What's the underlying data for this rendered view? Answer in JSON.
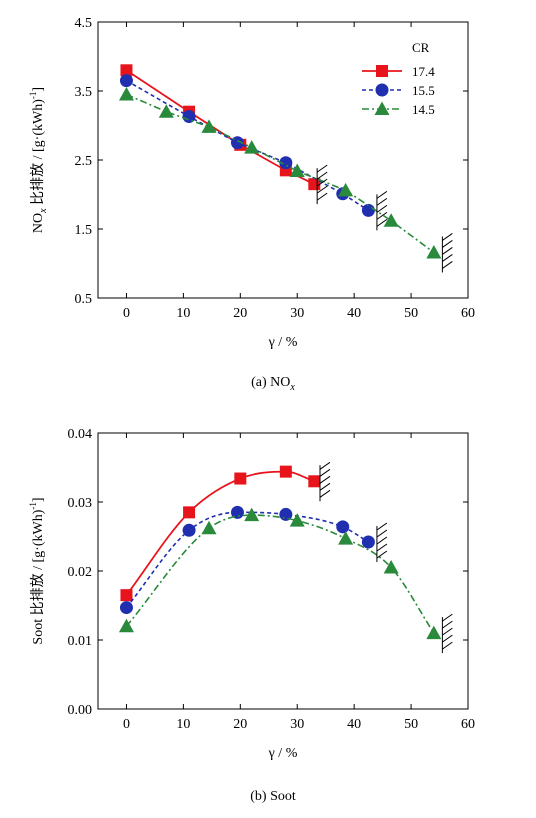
{
  "chart_data": [
    {
      "type": "line",
      "caption_prefix": "(a)",
      "caption_main": "NO",
      "caption_sub": "x",
      "xlabel": "γ / %",
      "ylabel_main": "NO",
      "ylabel_sub": "x",
      "ylabel_rest": " 比排放 / [g·(kWh)",
      "ylabel_sup": "-1",
      "ylabel_end": "]",
      "xlim": [
        -5,
        60
      ],
      "ylim": [
        0.5,
        4.5
      ],
      "xticks": [
        0,
        10,
        20,
        30,
        40,
        50,
        60
      ],
      "yticks": [
        0.5,
        1.5,
        2.5,
        3.5,
        4.5
      ],
      "ytick_labels": [
        "0.5",
        "1.5",
        "2.5",
        "3.5",
        "4.5"
      ],
      "grid": false,
      "legend": {
        "title": "CR",
        "position": "top-right"
      },
      "series": [
        {
          "name": "17.4",
          "color": "#e8141c",
          "marker": "square",
          "line": "solid",
          "x": [
            0,
            11,
            20,
            28,
            33
          ],
          "y": [
            3.8,
            3.2,
            2.72,
            2.35,
            2.15
          ]
        },
        {
          "name": "15.5",
          "color": "#1f2fb0",
          "marker": "circle",
          "line": "dash",
          "x": [
            0,
            11,
            19.5,
            28,
            38,
            42.5
          ],
          "y": [
            3.65,
            3.13,
            2.75,
            2.46,
            2.01,
            1.77
          ]
        },
        {
          "name": "14.5",
          "color": "#2a8a3c",
          "marker": "triangle",
          "line": "dashdot",
          "x": [
            0,
            7,
            14.5,
            22,
            30,
            38.5,
            46.5,
            54
          ],
          "y": [
            3.45,
            3.2,
            2.98,
            2.68,
            2.34,
            2.06,
            1.62,
            1.16
          ]
        }
      ],
      "boundary_marks_x": [
        33.5,
        44,
        55.5
      ]
    },
    {
      "type": "line",
      "caption_prefix": "(b)",
      "caption_main": "Soot",
      "caption_sub": "",
      "xlabel": "γ / %",
      "ylabel_main": "Soot",
      "ylabel_sub": "",
      "ylabel_rest": " 比排放 / [g·(kWh)",
      "ylabel_sup": "-1",
      "ylabel_end": "]",
      "xlim": [
        -5,
        60
      ],
      "ylim": [
        0.0,
        0.04
      ],
      "xticks": [
        0,
        10,
        20,
        30,
        40,
        50,
        60
      ],
      "yticks": [
        0.0,
        0.01,
        0.02,
        0.03,
        0.04
      ],
      "ytick_labels": [
        "0.00",
        "0.01",
        "0.02",
        "0.03",
        "0.04"
      ],
      "grid": false,
      "series": [
        {
          "name": "17.4",
          "color": "#e8141c",
          "marker": "square",
          "line": "solid",
          "x": [
            0,
            11,
            20,
            28,
            33
          ],
          "y": [
            0.0165,
            0.0285,
            0.0334,
            0.0344,
            0.033
          ]
        },
        {
          "name": "15.5",
          "color": "#1f2fb0",
          "marker": "circle",
          "line": "dash",
          "x": [
            0,
            11,
            19.5,
            28,
            38,
            42.5
          ],
          "y": [
            0.0147,
            0.0259,
            0.0285,
            0.0282,
            0.0264,
            0.0242
          ]
        },
        {
          "name": "14.5",
          "color": "#2a8a3c",
          "marker": "triangle",
          "line": "dashdot",
          "x": [
            0,
            14.5,
            22,
            30,
            38.5,
            46.5,
            54
          ],
          "y": [
            0.012,
            0.0262,
            0.0281,
            0.0273,
            0.0247,
            0.0205,
            0.011
          ]
        }
      ],
      "boundary_marks_x": [
        34,
        44,
        55.5
      ]
    }
  ]
}
